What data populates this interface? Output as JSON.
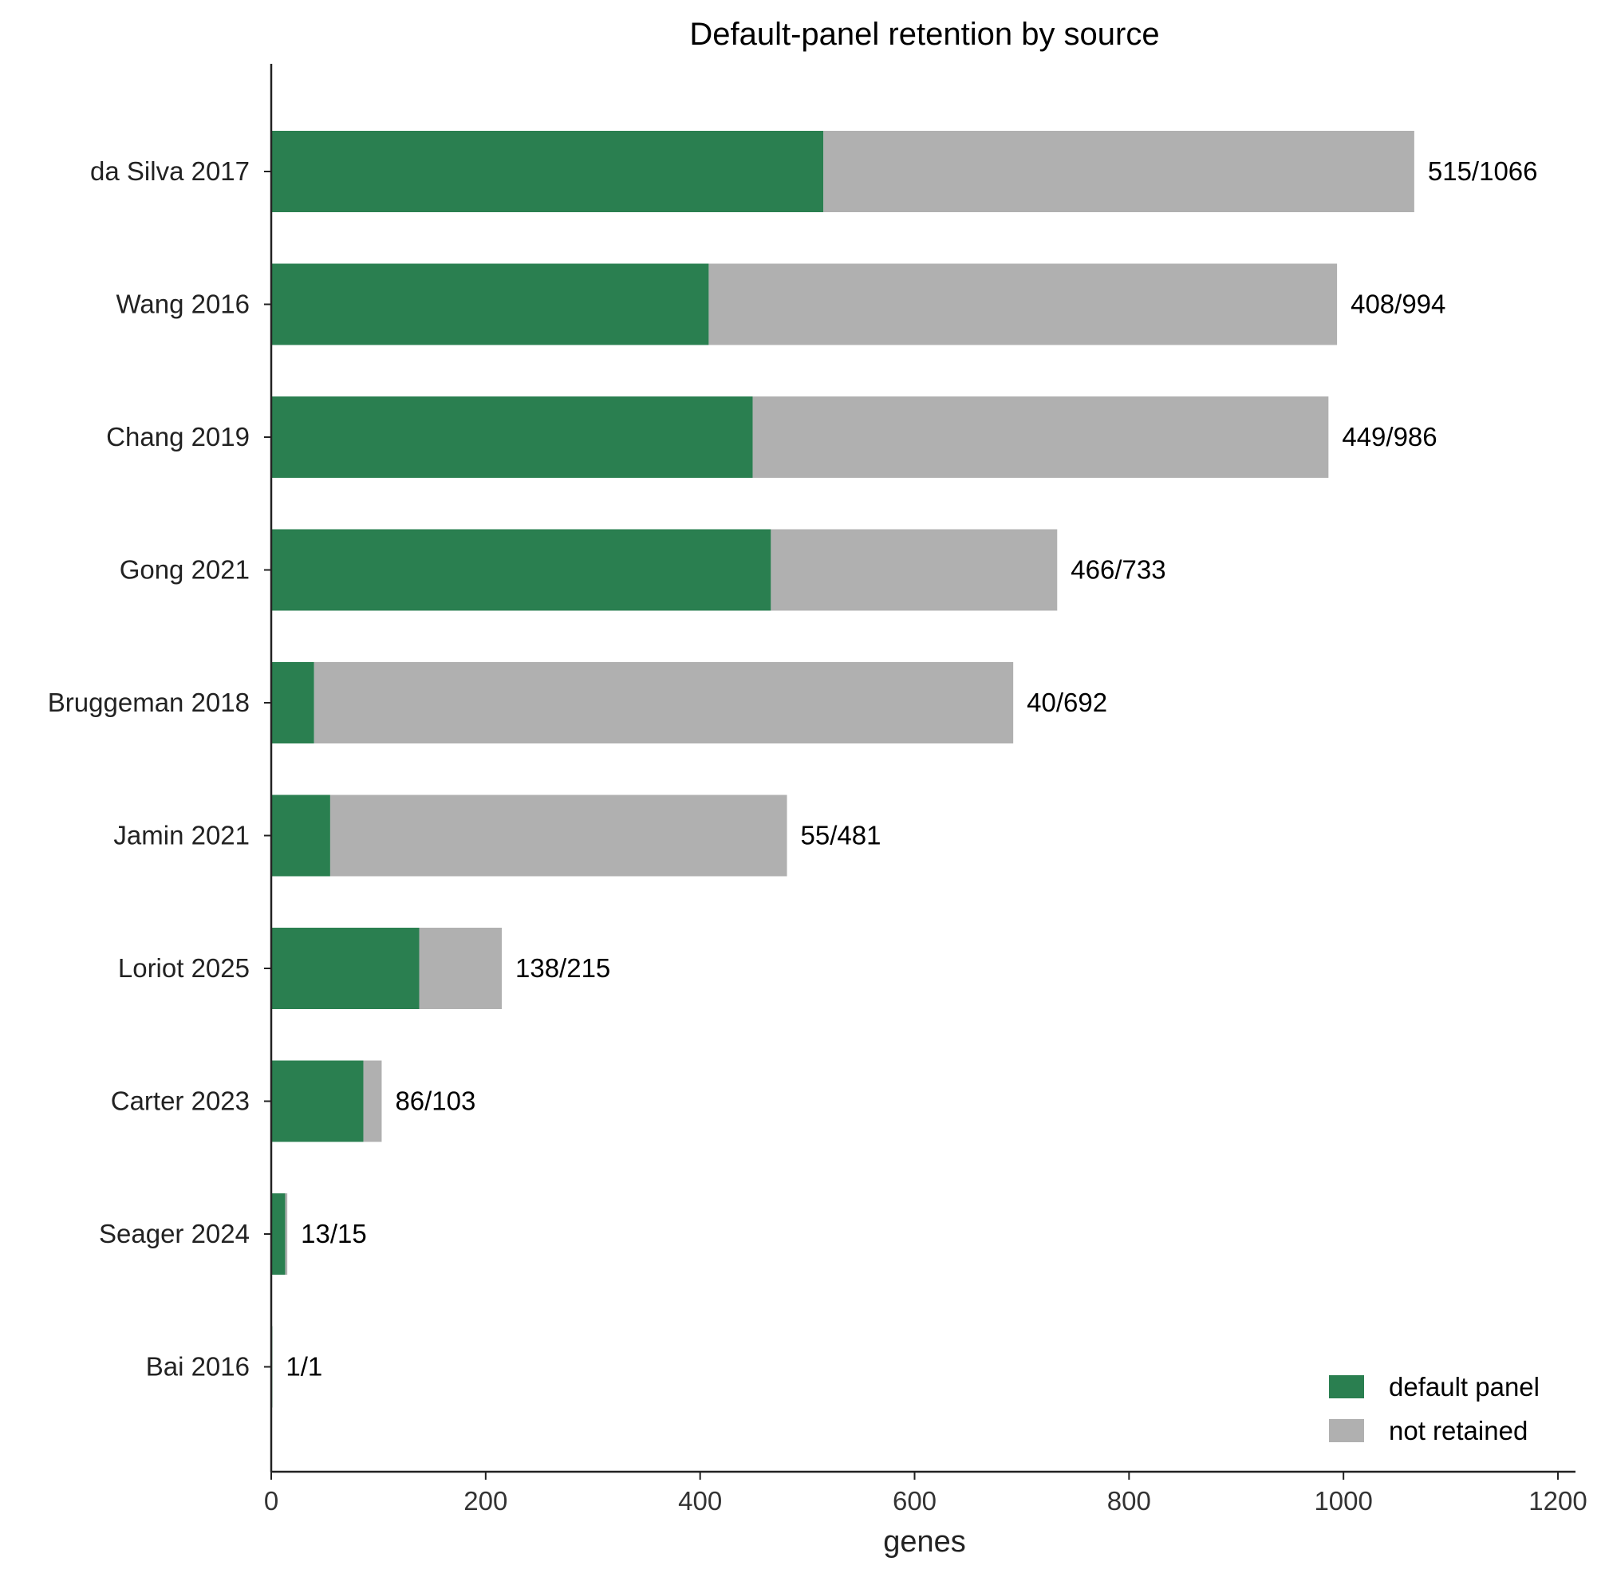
{
  "chart_data": {
    "type": "bar",
    "orientation": "horizontal",
    "stacked": true,
    "title": "Default-panel retention by source",
    "xlabel": "genes",
    "ylabel": "",
    "xlim": [
      0,
      1200
    ],
    "xticks": [
      "0",
      "200",
      "400",
      "600",
      "800",
      "1000",
      "1200"
    ],
    "grid": false,
    "legend_position": "bottom-right",
    "categories": [
      "da Silva 2017",
      "Wang 2016",
      "Chang 2019",
      "Gong 2021",
      "Bruggeman 2018",
      "Jamin 2021",
      "Loriot 2025",
      "Carter 2023",
      "Seager 2024",
      "Bai 2016"
    ],
    "series": [
      {
        "name": "default panel",
        "color": "#2a7f50",
        "values": [
          515,
          408,
          449,
          466,
          40,
          55,
          138,
          86,
          13,
          1
        ]
      },
      {
        "name": "not retained",
        "color": "#b0b0b0",
        "values": [
          551,
          586,
          537,
          267,
          652,
          426,
          77,
          17,
          2,
          0
        ]
      }
    ],
    "data_labels": [
      "515/1066",
      "408/994",
      "449/986",
      "466/733",
      "40/692",
      "55/481",
      "138/215",
      "86/103",
      "13/15",
      "1/1"
    ]
  }
}
